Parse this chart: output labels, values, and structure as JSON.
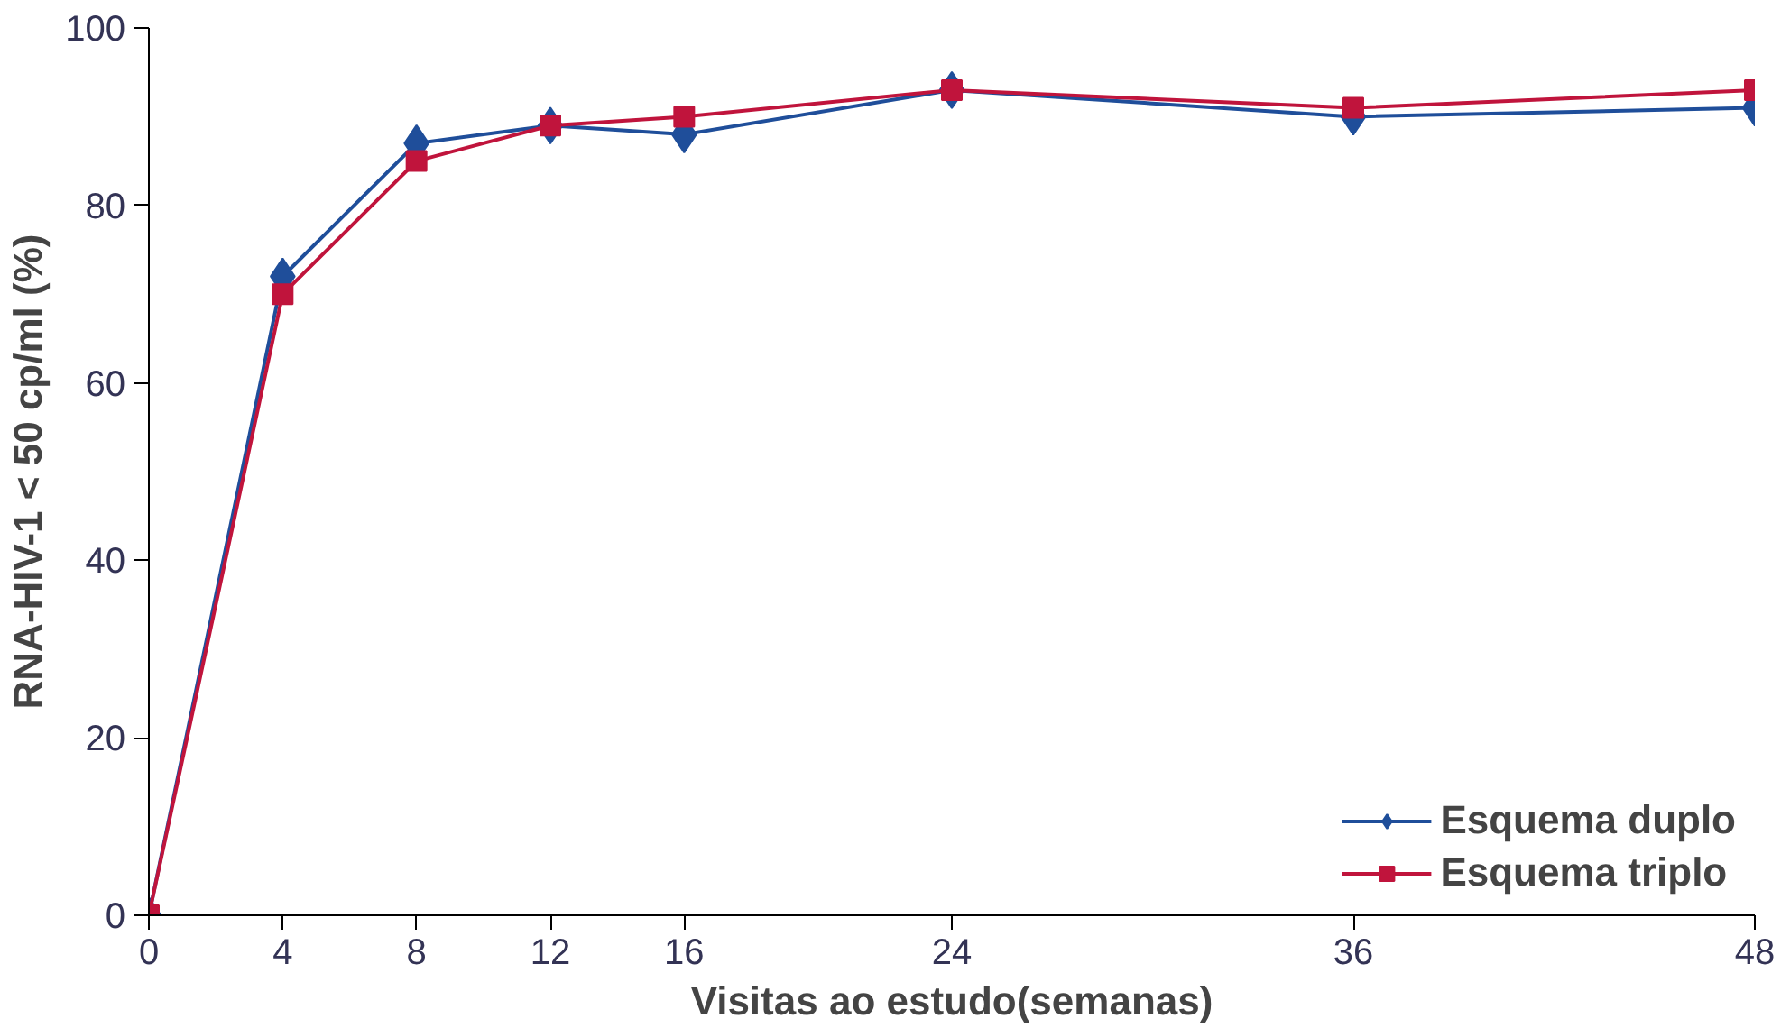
{
  "chart_data": {
    "type": "line",
    "xlabel": "Visitas ao estudo(semanas)",
    "ylabel": "RNA-HIV-1 < 50 cp/ml (%)",
    "x": [
      0,
      4,
      8,
      12,
      16,
      24,
      36,
      48
    ],
    "series": [
      {
        "name": "Esquema duplo",
        "color": "#1f4e9a",
        "marker": "diamond",
        "values": [
          0,
          72,
          87,
          89,
          88,
          93,
          90,
          91
        ]
      },
      {
        "name": "Esquema triplo",
        "color": "#c0143c",
        "marker": "square",
        "values": [
          0,
          70,
          85,
          89,
          90,
          93,
          91,
          93
        ]
      }
    ],
    "xlim": [
      0,
      48
    ],
    "xticks": [
      0,
      4,
      8,
      12,
      16,
      24,
      36,
      48
    ],
    "ylim": [
      0,
      100
    ],
    "yticks": [
      0,
      20,
      40,
      60,
      80,
      100
    ],
    "grid": false,
    "legend": "bottom right",
    "line_style": "solid"
  }
}
